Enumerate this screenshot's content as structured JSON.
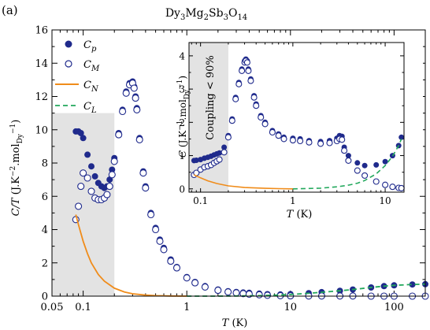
{
  "panel_label": "(a)",
  "chart_data": [
    {
      "type": "scatter",
      "title": "Dy3Mg2Sb3O14",
      "xlabel": "T (K)",
      "ylabel": "C/T (J.K^-2.mol_Dy^-1)",
      "xscale": "log",
      "xlim": [
        0.05,
        200
      ],
      "ylim": [
        0,
        16
      ],
      "xticks": [
        0.05,
        0.1,
        1,
        10,
        100
      ],
      "xtick_labels": [
        "0.05",
        "0.1",
        "1",
        "10",
        "100"
      ],
      "yticks": [
        0,
        2,
        4,
        6,
        8,
        10,
        12,
        14,
        16
      ],
      "shaded_region": {
        "x": [
          0.05,
          0.2
        ],
        "y": [
          0,
          11
        ]
      },
      "legend": {
        "placement": "top-left",
        "entries": [
          "C_p",
          "C_M",
          "C_N",
          "C_L"
        ]
      },
      "series": [
        {
          "name": "C_p",
          "marker": "filled-circle",
          "color": "#1f2a8c",
          "x": [
            0.085,
            0.09,
            0.095,
            0.1,
            0.11,
            0.12,
            0.13,
            0.14,
            0.15,
            0.16,
            0.17,
            0.18,
            0.19,
            0.2,
            0.22,
            0.24,
            0.26,
            0.28,
            0.3,
            0.31,
            0.32,
            0.33,
            0.35,
            0.38,
            0.4,
            0.45,
            0.5,
            0.55,
            0.6,
            0.7,
            0.8,
            1.0,
            1.2,
            1.5,
            2.0,
            2.5,
            3.0,
            3.5,
            4.0,
            5.0,
            6.0,
            8.0,
            10,
            15,
            20,
            30,
            40,
            60,
            80,
            100,
            150,
            200
          ],
          "y": [
            9.9,
            9.9,
            9.8,
            9.5,
            8.5,
            7.8,
            7.2,
            6.8,
            6.6,
            6.5,
            6.6,
            7.0,
            7.6,
            8.3,
            9.8,
            11.2,
            12.3,
            12.8,
            12.9,
            12.6,
            12.0,
            11.3,
            9.5,
            7.5,
            6.6,
            5.0,
            4.1,
            3.4,
            2.9,
            2.2,
            1.75,
            1.15,
            0.85,
            0.6,
            0.4,
            0.3,
            0.25,
            0.22,
            0.2,
            0.15,
            0.12,
            0.1,
            0.12,
            0.18,
            0.24,
            0.32,
            0.4,
            0.52,
            0.6,
            0.65,
            0.7,
            0.72
          ]
        },
        {
          "name": "C_M",
          "marker": "open-circle",
          "color": "#1f2a8c",
          "x": [
            0.085,
            0.09,
            0.095,
            0.1,
            0.11,
            0.12,
            0.13,
            0.14,
            0.15,
            0.16,
            0.17,
            0.18,
            0.19,
            0.2,
            0.22,
            0.24,
            0.26,
            0.28,
            0.3,
            0.31,
            0.32,
            0.33,
            0.35,
            0.38,
            0.4,
            0.45,
            0.5,
            0.55,
            0.6,
            0.7,
            0.8,
            1.0,
            1.2,
            1.5,
            2.0,
            2.5,
            3.0,
            3.5,
            4.0,
            5.0,
            6.0,
            8.0,
            10,
            15,
            20,
            30,
            40,
            60,
            80,
            100,
            150,
            200
          ],
          "y": [
            4.6,
            5.4,
            6.6,
            7.4,
            7.1,
            6.3,
            5.9,
            5.8,
            5.8,
            5.9,
            6.1,
            6.6,
            7.3,
            8.1,
            9.7,
            11.1,
            12.2,
            12.7,
            12.8,
            12.5,
            11.9,
            11.2,
            9.4,
            7.4,
            6.5,
            4.9,
            4.0,
            3.3,
            2.8,
            2.1,
            1.7,
            1.1,
            0.8,
            0.55,
            0.35,
            0.25,
            0.2,
            0.15,
            0.12,
            0.08,
            0.05,
            0.03,
            0.02,
            0.01,
            0.01,
            0.01,
            0.01,
            0.0,
            0.0,
            0.0,
            0.0,
            0.0
          ]
        },
        {
          "name": "C_N",
          "line": "solid",
          "color": "#f08c1a",
          "x": [
            0.085,
            0.09,
            0.1,
            0.11,
            0.12,
            0.14,
            0.16,
            0.2,
            0.25,
            0.3,
            0.4,
            0.5,
            0.7,
            1.0
          ],
          "y": [
            4.9,
            4.3,
            3.3,
            2.55,
            2.0,
            1.3,
            0.9,
            0.48,
            0.25,
            0.14,
            0.06,
            0.03,
            0.01,
            0.0
          ]
        },
        {
          "name": "C_L",
          "line": "dashed",
          "color": "#22a85c",
          "x": [
            1,
            2,
            3,
            5,
            8,
            10,
            15,
            20,
            30,
            40,
            60,
            80,
            100,
            150,
            200
          ],
          "y": [
            0.0,
            0.0,
            0.01,
            0.03,
            0.07,
            0.1,
            0.17,
            0.23,
            0.32,
            0.4,
            0.52,
            0.6,
            0.65,
            0.7,
            0.72
          ]
        }
      ]
    },
    {
      "type": "scatter",
      "inset": true,
      "xlabel": "T (K)",
      "ylabel": "C (J.K^-1.mol_Dy^-1)",
      "xscale": "log",
      "xlim": [
        0.075,
        16
      ],
      "ylim": [
        -0.1,
        4.4
      ],
      "xticks": [
        0.1,
        1,
        10
      ],
      "xtick_labels": [
        "0.1",
        "1",
        "10"
      ],
      "yticks": [
        0,
        1,
        2,
        3,
        4
      ],
      "shaded_region": {
        "x": [
          0.075,
          0.2
        ],
        "label": "Coupling < 90%"
      },
      "series": [
        {
          "name": "C_p",
          "marker": "filled-circle",
          "color": "#1f2a8c",
          "x": [
            0.085,
            0.09,
            0.1,
            0.11,
            0.12,
            0.13,
            0.14,
            0.15,
            0.16,
            0.18,
            0.2,
            0.22,
            0.24,
            0.26,
            0.28,
            0.3,
            0.31,
            0.32,
            0.33,
            0.35,
            0.38,
            0.4,
            0.45,
            0.5,
            0.6,
            0.7,
            0.8,
            1.0,
            1.2,
            1.5,
            2.0,
            2.5,
            3.0,
            3.2,
            3.4,
            3.6,
            4.0,
            5.0,
            6.0,
            8.0,
            10,
            12,
            14,
            15
          ],
          "y": [
            0.85,
            0.86,
            0.88,
            0.92,
            0.95,
            0.98,
            1.02,
            1.05,
            1.08,
            1.25,
            1.6,
            2.1,
            2.75,
            3.2,
            3.6,
            3.85,
            3.9,
            3.85,
            3.6,
            3.3,
            2.8,
            2.55,
            2.2,
            2.0,
            1.75,
            1.65,
            1.55,
            1.52,
            1.5,
            1.45,
            1.42,
            1.45,
            1.52,
            1.6,
            1.58,
            1.25,
            1.0,
            0.78,
            0.7,
            0.72,
            0.82,
            1.0,
            1.3,
            1.55
          ]
        },
        {
          "name": "C_M",
          "marker": "open-circle",
          "color": "#1f2a8c",
          "x": [
            0.085,
            0.09,
            0.1,
            0.11,
            0.12,
            0.13,
            0.14,
            0.15,
            0.16,
            0.18,
            0.2,
            0.22,
            0.24,
            0.26,
            0.28,
            0.3,
            0.31,
            0.32,
            0.33,
            0.35,
            0.38,
            0.4,
            0.45,
            0.5,
            0.6,
            0.7,
            0.8,
            1.0,
            1.2,
            1.5,
            2.0,
            2.5,
            3.0,
            3.2,
            3.4,
            3.6,
            4.0,
            5.0,
            6.0,
            8.0,
            10,
            12,
            14,
            15
          ],
          "y": [
            0.42,
            0.48,
            0.58,
            0.65,
            0.68,
            0.72,
            0.78,
            0.83,
            0.88,
            1.1,
            1.55,
            2.05,
            2.7,
            3.15,
            3.55,
            3.8,
            3.85,
            3.8,
            3.55,
            3.25,
            2.75,
            2.5,
            2.15,
            1.95,
            1.7,
            1.6,
            1.5,
            1.46,
            1.44,
            1.4,
            1.36,
            1.38,
            1.44,
            1.5,
            1.48,
            1.15,
            0.85,
            0.55,
            0.4,
            0.22,
            0.12,
            0.06,
            0.03,
            0.02
          ]
        },
        {
          "name": "C_N",
          "line": "solid",
          "color": "#f08c1a",
          "x": [
            0.085,
            0.1,
            0.12,
            0.15,
            0.2,
            0.3,
            0.5,
            0.7,
            1.0
          ],
          "y": [
            0.42,
            0.33,
            0.24,
            0.16,
            0.09,
            0.04,
            0.015,
            0.006,
            0.0
          ]
        },
        {
          "name": "C_L",
          "line": "dashed",
          "color": "#22a85c",
          "x": [
            1,
            2,
            3,
            4,
            5,
            6,
            8,
            10,
            12,
            14,
            15
          ],
          "y": [
            0.0,
            0.02,
            0.06,
            0.11,
            0.17,
            0.25,
            0.45,
            0.7,
            0.98,
            1.3,
            1.5
          ]
        }
      ]
    }
  ]
}
